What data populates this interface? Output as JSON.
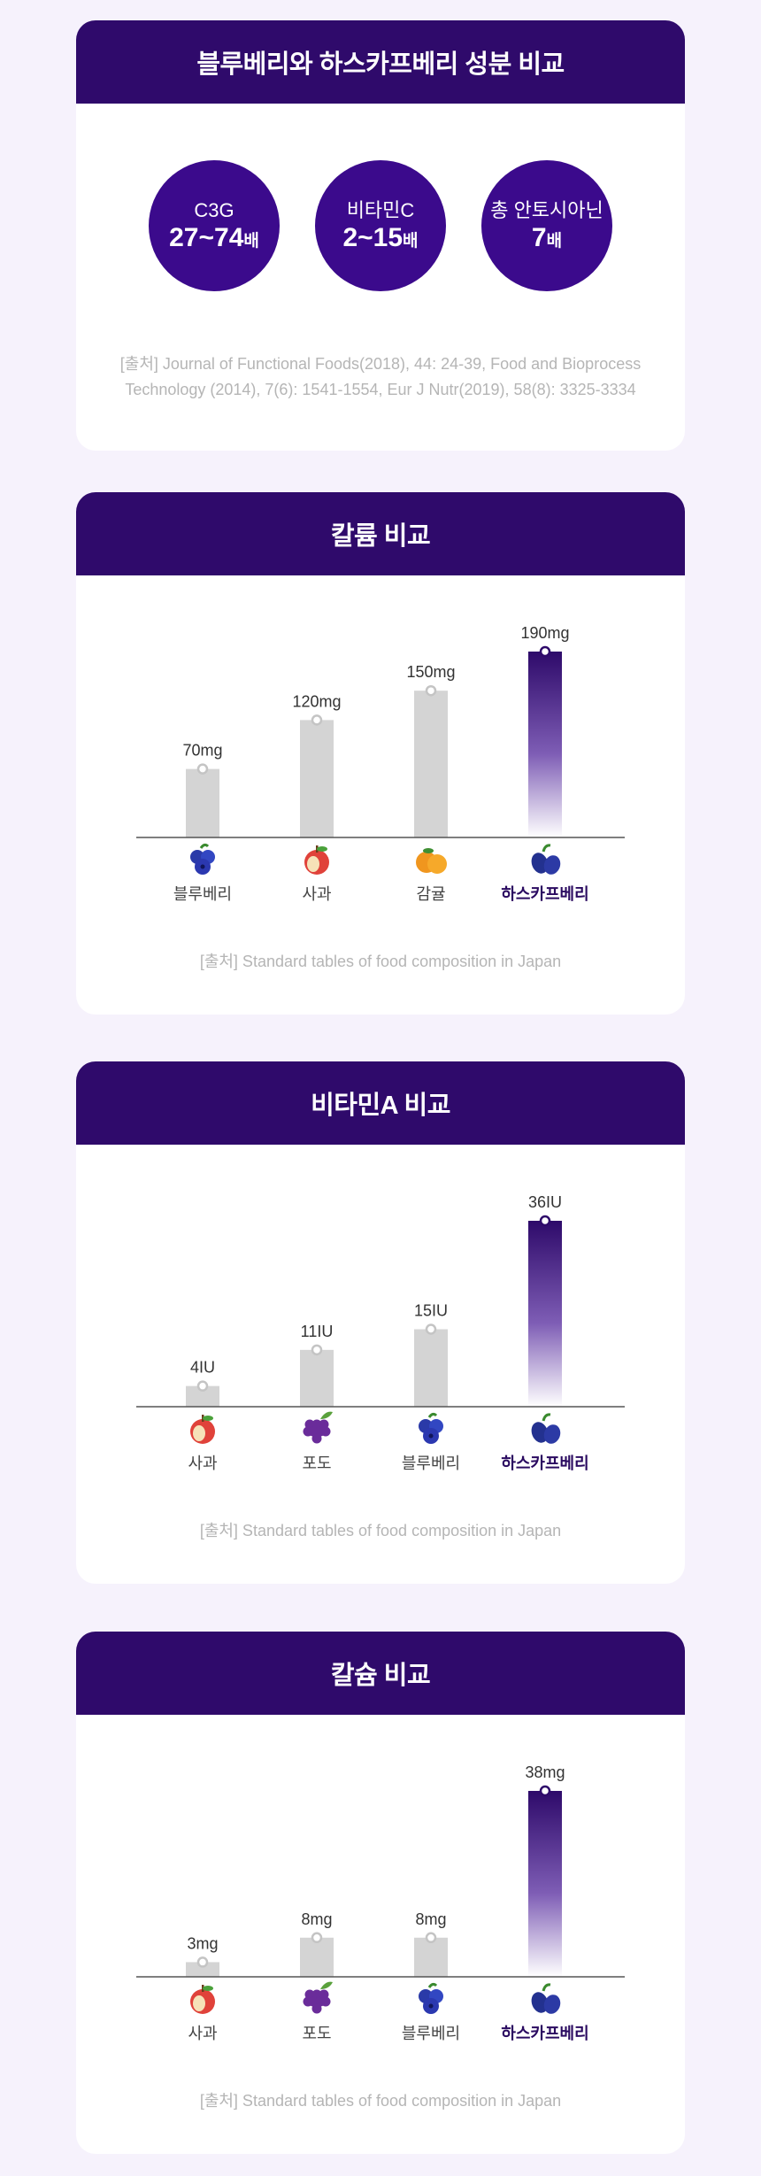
{
  "compare": {
    "title": "블루베리와 하스카프베리 성분 비교",
    "items": [
      {
        "label": "C3G",
        "value": "27~74",
        "unit": "배"
      },
      {
        "label": "비타민C",
        "value": "2~15",
        "unit": "배"
      },
      {
        "label": "총 안토시아닌",
        "value": "7",
        "unit": "배"
      }
    ],
    "source_line1": "[출처] Journal of Functional Foods(2018), 44: 24-39, Food and Bioprocess",
    "source_line2": "Technology (2014), 7(6): 1541-1554, Eur J Nutr(2019), 58(8): 3325-3334"
  },
  "chart_data": [
    {
      "type": "bar",
      "title": "칼륨 비교",
      "categories": [
        "블루베리",
        "사과",
        "감귤",
        "하스카프베리"
      ],
      "icons": [
        "blueberry-icon",
        "apple-icon",
        "tangerine-icon",
        "haskap-icon"
      ],
      "values": [
        70,
        120,
        150,
        190
      ],
      "value_labels": [
        "70mg",
        "120mg",
        "150mg",
        "190mg"
      ],
      "unit": "mg",
      "ylim": [
        0,
        190
      ],
      "highlight_index": 3,
      "source": "[출처] Standard tables of food composition in Japan"
    },
    {
      "type": "bar",
      "title": "비타민A 비교",
      "categories": [
        "사과",
        "포도",
        "블루베리",
        "하스카프베리"
      ],
      "icons": [
        "apple-icon",
        "grape-icon",
        "blueberry-icon",
        "haskap-icon"
      ],
      "values": [
        4,
        11,
        15,
        36
      ],
      "value_labels": [
        "4IU",
        "11IU",
        "15IU",
        "36IU"
      ],
      "unit": "IU",
      "ylim": [
        0,
        36
      ],
      "highlight_index": 3,
      "source": "[출처] Standard tables of food composition in Japan"
    },
    {
      "type": "bar",
      "title": "칼슘 비교",
      "categories": [
        "사과",
        "포도",
        "블루베리",
        "하스카프베리"
      ],
      "icons": [
        "apple-icon",
        "grape-icon",
        "blueberry-icon",
        "haskap-icon"
      ],
      "values": [
        3,
        8,
        8,
        38
      ],
      "value_labels": [
        "3mg",
        "8mg",
        "8mg",
        "38mg"
      ],
      "unit": "mg",
      "ylim": [
        0,
        38
      ],
      "highlight_index": 3,
      "source": "[출처] Standard tables of food composition in Japan"
    }
  ],
  "colors": {
    "header_bg": "#2f0a6b",
    "circle_bg": "#3b0a8c",
    "bar_gray": "#d4d4d4",
    "highlight_top": "#2e0a6a",
    "source_text": "#b5b5b5"
  }
}
